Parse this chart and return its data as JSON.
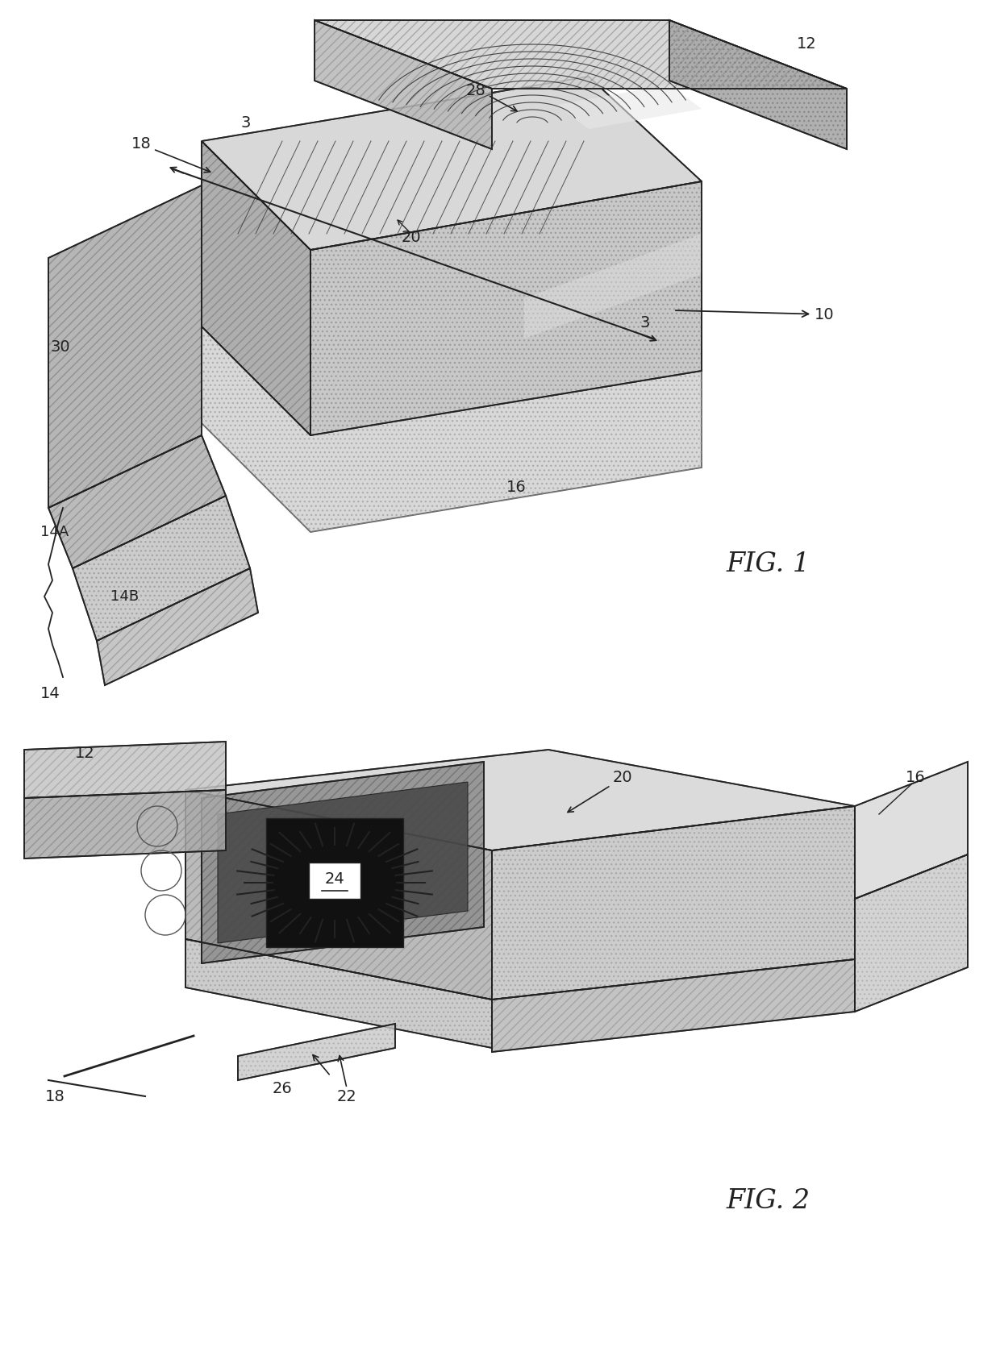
{
  "fig_width": 12.4,
  "fig_height": 16.71,
  "dpi": 100,
  "bg_color": "#ffffff",
  "line_color": "#222222",
  "fig1_title": "FIG. 1",
  "fig2_title": "FIG. 2",
  "gray_light": "#e0e0e0",
  "gray_mid": "#b8b8b8",
  "gray_dark": "#888888",
  "gray_darker": "#555555",
  "hatch_fill": "#999999"
}
